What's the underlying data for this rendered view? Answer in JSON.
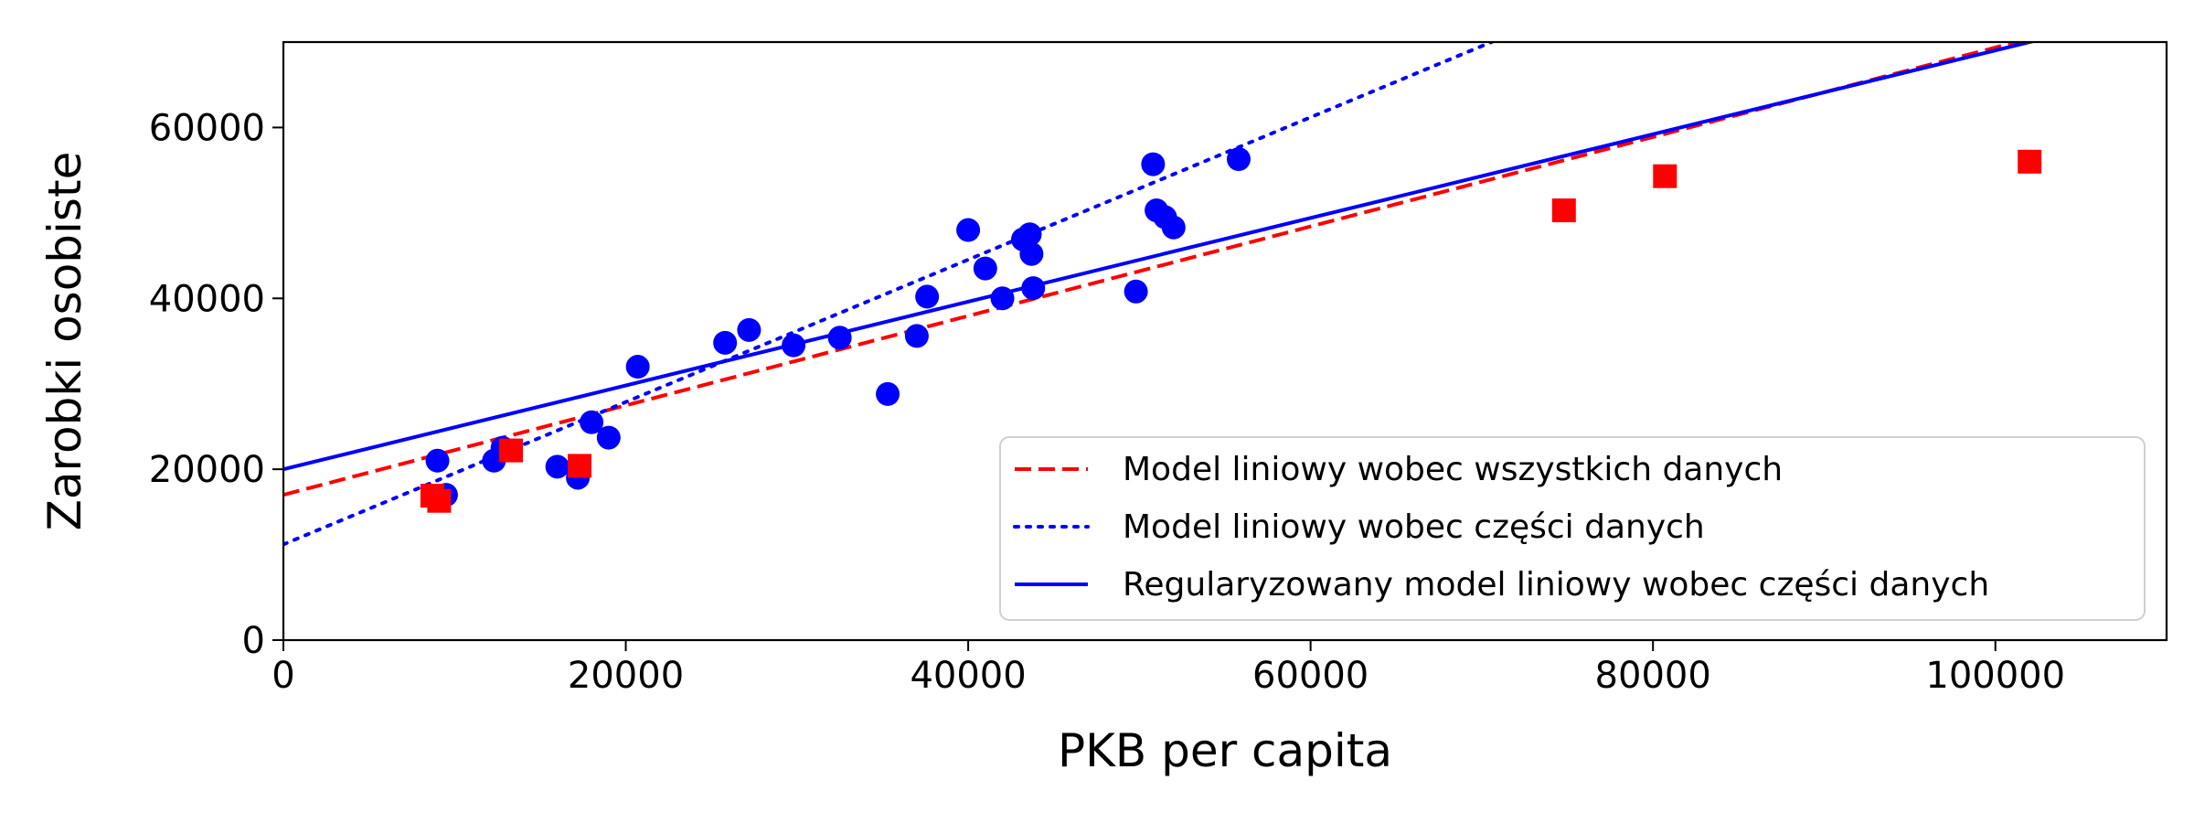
{
  "chart_data": {
    "type": "scatter",
    "title": "",
    "xlabel": "PKB per capita",
    "ylabel": "Zarobki osobiste",
    "xlim": [
      0,
      110000
    ],
    "ylim": [
      0,
      70000
    ],
    "xticks": [
      0,
      20000,
      40000,
      60000,
      80000,
      100000
    ],
    "yticks": [
      0,
      20000,
      40000,
      60000
    ],
    "grid": false,
    "legend_position": "bottom-right",
    "scatter_series": [
      {
        "marker": "circle",
        "color": "#0000ff",
        "points": [
          [
            9000,
            21000
          ],
          [
            9500,
            17000
          ],
          [
            12300,
            21000
          ],
          [
            12800,
            22500
          ],
          [
            16000,
            20300
          ],
          [
            17200,
            19000
          ],
          [
            18000,
            25500
          ],
          [
            19000,
            23700
          ],
          [
            20700,
            32000
          ],
          [
            25800,
            34800
          ],
          [
            27200,
            36300
          ],
          [
            29800,
            34500
          ],
          [
            32500,
            35400
          ],
          [
            35300,
            28800
          ],
          [
            37000,
            35600
          ],
          [
            37600,
            40200
          ],
          [
            40000,
            48000
          ],
          [
            41000,
            43500
          ],
          [
            42000,
            40000
          ],
          [
            43200,
            46900
          ],
          [
            43600,
            47500
          ],
          [
            43700,
            45200
          ],
          [
            43800,
            41200
          ],
          [
            49800,
            40800
          ],
          [
            50800,
            55700
          ],
          [
            51000,
            50300
          ],
          [
            51500,
            49500
          ],
          [
            52000,
            48300
          ],
          [
            55800,
            56300
          ]
        ]
      },
      {
        "marker": "square",
        "color": "#ff0000",
        "points": [
          [
            8700,
            16900
          ],
          [
            9100,
            16300
          ],
          [
            13300,
            22200
          ],
          [
            17300,
            20400
          ],
          [
            74800,
            50300
          ],
          [
            80700,
            54300
          ],
          [
            102000,
            56000
          ]
        ]
      }
    ],
    "lines": [
      {
        "name": "Model liniowy wobec wszystkich danych",
        "color": "#ff0000",
        "style": "dashed",
        "intercept": 17000,
        "slope": 0.5236
      },
      {
        "name": "Model liniowy wobec części danych",
        "color": "#0000ff",
        "style": "dotted",
        "intercept": 11200,
        "slope": 0.8333
      },
      {
        "name": "Regularyzowany model liniowy wobec części danych",
        "color": "#0000ff",
        "style": "solid",
        "intercept": 20000,
        "slope": 0.4902
      }
    ]
  }
}
